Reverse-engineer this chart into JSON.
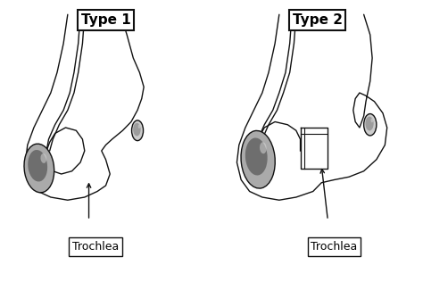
{
  "background_color": "#ffffff",
  "panel_bg": "#ffffff",
  "title1": "Type 1",
  "title2": "Type 2",
  "label1": "Trochlea",
  "label2": "Trochlea",
  "title_fontsize": 11,
  "label_fontsize": 9,
  "line_color": "#111111",
  "fill_gray_light": "#bbbbbb",
  "fill_gray_dark": "#777777",
  "fill_gray_med": "#999999"
}
